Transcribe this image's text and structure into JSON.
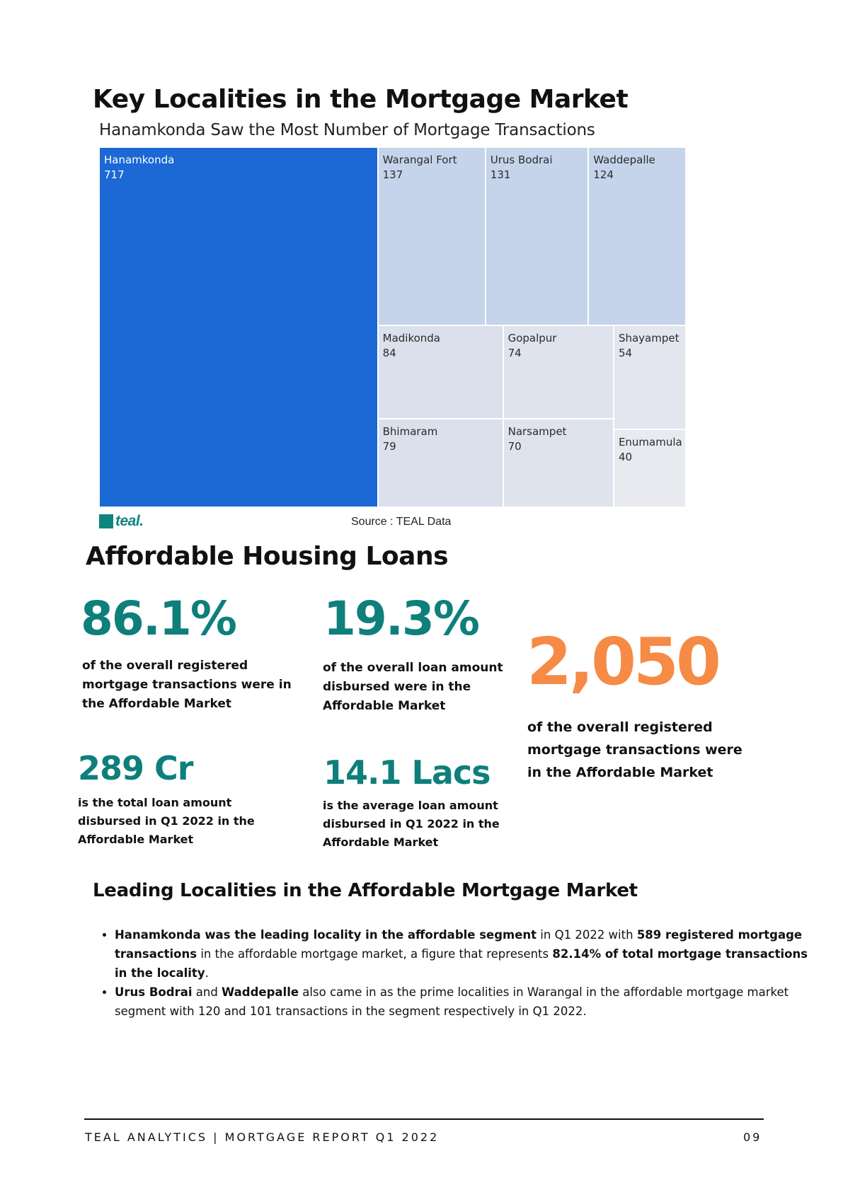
{
  "header": {
    "title": "Key Localities in the Mortgage Market"
  },
  "chart_data": {
    "type": "treemap",
    "title": "Hanamkonda Saw the Most Number of Mortgage Transactions",
    "items": [
      {
        "label": "Hanamkonda",
        "value": 717,
        "color": "#1c68d4"
      },
      {
        "label": "Warangal Fort",
        "value": 137,
        "color": "#c5d4ea"
      },
      {
        "label": "Urus Bodrai",
        "value": 131,
        "color": "#c5d4ea"
      },
      {
        "label": "Waddepalle",
        "value": 124,
        "color": "#c5d4ea"
      },
      {
        "label": "Madikonda",
        "value": 84,
        "color": "#dbe0ec"
      },
      {
        "label": "Bhimaram",
        "value": 79,
        "color": "#dbe0ec"
      },
      {
        "label": "Gopalpur",
        "value": 74,
        "color": "#dfe3ee"
      },
      {
        "label": "Narsampet",
        "value": 70,
        "color": "#dfe3ee"
      },
      {
        "label": "Shayampet",
        "value": 54,
        "color": "#e3e6ef"
      },
      {
        "label": "Enumamula",
        "value": 40,
        "color": "#e8eaf0"
      }
    ],
    "source": "Source : TEAL Data"
  },
  "logo": {
    "text": "teal."
  },
  "affordable": {
    "title": "Affordable Housing Loans",
    "stat1": {
      "value": "86.1%",
      "desc": "of the overall registered mortgage transactions were in the Affordable Market"
    },
    "stat2": {
      "value": "19.3%",
      "desc": "of the overall loan amount disbursed were in the Affordable Market"
    },
    "stat3": {
      "value": "2,050",
      "desc": "of the overall registered mortgage transactions were in the Affordable Market"
    },
    "stat4": {
      "value": "289 Cr",
      "desc": "is the total loan amount disbursed in Q1 2022 in the Affordable Market"
    },
    "stat5": {
      "value": "14.1 Lacs",
      "desc": "is the average loan amount disbursed in Q1 2022 in the Affordable Market"
    }
  },
  "leading": {
    "title": "Leading Localities in the Affordable Mortgage Market",
    "bullet1": {
      "b1": "Hanamkonda was the leading locality in the affordable segment",
      "t1": " in Q1 2022 with ",
      "b2": "589 registered mortgage transactions",
      "t2": " in the affordable mortgage market, a figure that represents ",
      "b3": "82.14% of total mortgage transactions in the locality",
      "t3": "."
    },
    "bullet2": {
      "b1": "Urus Bodrai",
      "t1": " and ",
      "b2": "Waddepalle",
      "t2": " also came in as the prime localities in Warangal in the affordable mortgage market segment  with 120 and 101 transactions in the segment respectively in Q1 2022."
    }
  },
  "footer": {
    "left": "TEAL ANALYTICS | MORTGAGE REPORT Q1 2022",
    "right": "09"
  }
}
